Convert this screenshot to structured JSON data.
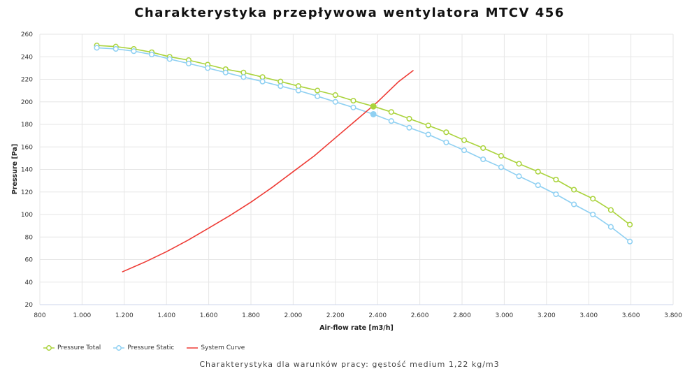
{
  "title": "Charakterystyka przepływowa wentylatora MTCV 456",
  "subtitle": "Charakterystyka dla warunków pracy: gęstość medium 1,22 kg/m3",
  "colors": {
    "pressure_total": "#aad33c",
    "pressure_static": "#8fd0f2",
    "system_curve": "#ee3b35",
    "grid": "#e6e6e6"
  },
  "chart_data": {
    "type": "line",
    "title": "Charakterystyka przepływowa wentylatora MTCV 456",
    "subtitle": "Charakterystyka dla warunków pracy: gęstość medium 1,22 kg/m3",
    "xlabel": "Air-flow rate [m3/h]",
    "ylabel": "Pressure [Pa]",
    "xlim": [
      800,
      3800
    ],
    "ylim": [
      20,
      260
    ],
    "x_ticks": [
      "800",
      "1.000",
      "1.200",
      "1.400",
      "1.600",
      "1.800",
      "2.000",
      "2.200",
      "2.400",
      "2.600",
      "2.800",
      "3.000",
      "3.200",
      "3.400",
      "3.600",
      "3.800"
    ],
    "y_ticks": [
      "20",
      "40",
      "60",
      "80",
      "100",
      "120",
      "140",
      "160",
      "180",
      "200",
      "220",
      "240",
      "260"
    ],
    "grid": true,
    "legend_position": "bottom-left",
    "operating_point": {
      "x": 2380,
      "total": 196,
      "static": 189
    },
    "series": [
      {
        "name": "Pressure Total",
        "color": "#aad33c",
        "markers": true,
        "points": [
          [
            1070,
            250
          ],
          [
            1160,
            249
          ],
          [
            1245,
            247
          ],
          [
            1330,
            244
          ],
          [
            1415,
            240
          ],
          [
            1505,
            237
          ],
          [
            1595,
            233
          ],
          [
            1680,
            229
          ],
          [
            1765,
            226
          ],
          [
            1855,
            222
          ],
          [
            1940,
            218
          ],
          [
            2025,
            214
          ],
          [
            2115,
            210
          ],
          [
            2200,
            206
          ],
          [
            2285,
            201
          ],
          [
            2380,
            196
          ],
          [
            2465,
            191
          ],
          [
            2550,
            185
          ],
          [
            2640,
            179
          ],
          [
            2725,
            173
          ],
          [
            2810,
            166
          ],
          [
            2900,
            159
          ],
          [
            2985,
            152
          ],
          [
            3070,
            145
          ],
          [
            3160,
            138
          ],
          [
            3245,
            131
          ],
          [
            3330,
            122
          ],
          [
            3420,
            114
          ],
          [
            3505,
            104
          ],
          [
            3595,
            91
          ]
        ]
      },
      {
        "name": "Pressure Static",
        "color": "#8fd0f2",
        "markers": true,
        "points": [
          [
            1070,
            248
          ],
          [
            1160,
            247
          ],
          [
            1245,
            245
          ],
          [
            1330,
            242
          ],
          [
            1415,
            238
          ],
          [
            1505,
            234
          ],
          [
            1595,
            230
          ],
          [
            1680,
            226
          ],
          [
            1765,
            222
          ],
          [
            1855,
            218
          ],
          [
            1940,
            214
          ],
          [
            2025,
            210
          ],
          [
            2115,
            205
          ],
          [
            2200,
            200
          ],
          [
            2285,
            195
          ],
          [
            2380,
            189
          ],
          [
            2465,
            183
          ],
          [
            2550,
            177
          ],
          [
            2640,
            171
          ],
          [
            2725,
            164
          ],
          [
            2810,
            157
          ],
          [
            2900,
            149
          ],
          [
            2985,
            142
          ],
          [
            3070,
            134
          ],
          [
            3160,
            126
          ],
          [
            3245,
            118
          ],
          [
            3330,
            109
          ],
          [
            3420,
            100
          ],
          [
            3505,
            89
          ],
          [
            3595,
            76
          ]
        ]
      },
      {
        "name": "System Curve",
        "color": "#ee3b35",
        "markers": false,
        "points": [
          [
            1190,
            49
          ],
          [
            1300,
            58
          ],
          [
            1400,
            67
          ],
          [
            1500,
            77
          ],
          [
            1600,
            88
          ],
          [
            1700,
            99
          ],
          [
            1800,
            111
          ],
          [
            1900,
            124
          ],
          [
            2000,
            138
          ],
          [
            2100,
            152
          ],
          [
            2200,
            168
          ],
          [
            2300,
            184
          ],
          [
            2400,
            200
          ],
          [
            2500,
            218
          ],
          [
            2570,
            228
          ]
        ]
      }
    ]
  }
}
